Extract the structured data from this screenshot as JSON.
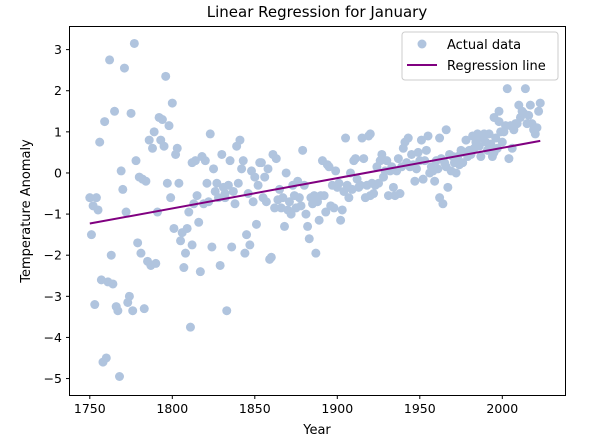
{
  "chart_data": {
    "type": "scatter",
    "title": "Linear Regression for January",
    "xlabel": "Year",
    "ylabel": "Temperature Anomaly",
    "xlim": [
      1738,
      2038
    ],
    "ylim": [
      -5.4,
      3.55
    ],
    "xticks": [
      1750,
      1800,
      1850,
      1900,
      1950,
      2000
    ],
    "yticks": [
      -5,
      -4,
      -3,
      -2,
      -1,
      0,
      1,
      2,
      3
    ],
    "tick_labels_y": [
      "−5",
      "−4",
      "−3",
      "−2",
      "−1",
      "0",
      "1",
      "2",
      "3"
    ],
    "grid": false,
    "legend_placement": "top-right",
    "colors": {
      "scatter": "#b0c4de",
      "line": "#800080"
    },
    "series": [
      {
        "name": "Actual data",
        "type": "scatter",
        "points": [
          [
            1750,
            -0.6
          ],
          [
            1751,
            -1.5
          ],
          [
            1752,
            -0.8
          ],
          [
            1753,
            -3.2
          ],
          [
            1754,
            -0.6
          ],
          [
            1755,
            -0.9
          ],
          [
            1756,
            0.75
          ],
          [
            1757,
            -2.6
          ],
          [
            1758,
            -4.6
          ],
          [
            1759,
            1.25
          ],
          [
            1760,
            -4.5
          ],
          [
            1761,
            -2.65
          ],
          [
            1762,
            2.75
          ],
          [
            1763,
            -2.0
          ],
          [
            1764,
            -2.7
          ],
          [
            1765,
            1.5
          ],
          [
            1766,
            -3.25
          ],
          [
            1767,
            -3.35
          ],
          [
            1768,
            -4.95
          ],
          [
            1769,
            0.05
          ],
          [
            1770,
            -0.4
          ],
          [
            1771,
            2.55
          ],
          [
            1772,
            -0.95
          ],
          [
            1773,
            -3.15
          ],
          [
            1774,
            -3.0
          ],
          [
            1775,
            1.45
          ],
          [
            1776,
            -3.35
          ],
          [
            1777,
            3.15
          ],
          [
            1778,
            0.3
          ],
          [
            1779,
            -1.7
          ],
          [
            1780,
            -0.1
          ],
          [
            1781,
            -1.95
          ],
          [
            1782,
            -0.15
          ],
          [
            1783,
            -3.3
          ],
          [
            1784,
            -0.2
          ],
          [
            1785,
            -2.15
          ],
          [
            1786,
            0.8
          ],
          [
            1787,
            -2.25
          ],
          [
            1788,
            0.6
          ],
          [
            1789,
            1.0
          ],
          [
            1790,
            -2.2
          ],
          [
            1791,
            -0.95
          ],
          [
            1792,
            1.35
          ],
          [
            1793,
            0.8
          ],
          [
            1794,
            1.3
          ],
          [
            1795,
            0.65
          ],
          [
            1796,
            2.35
          ],
          [
            1797,
            -0.25
          ],
          [
            1798,
            1.15
          ],
          [
            1799,
            -0.6
          ],
          [
            1800,
            1.7
          ],
          [
            1801,
            -1.35
          ],
          [
            1802,
            0.45
          ],
          [
            1803,
            0.6
          ],
          [
            1804,
            -0.25
          ],
          [
            1805,
            -1.65
          ],
          [
            1806,
            -1.45
          ],
          [
            1807,
            -2.3
          ],
          [
            1808,
            -1.95
          ],
          [
            1809,
            -1.35
          ],
          [
            1810,
            -0.95
          ],
          [
            1811,
            -3.75
          ],
          [
            1812,
            -1.75
          ],
          [
            1813,
            -0.75
          ],
          [
            1814,
            0.3
          ],
          [
            1815,
            -0.55
          ],
          [
            1816,
            -1.2
          ],
          [
            1817,
            -2.4
          ],
          [
            1818,
            0.4
          ],
          [
            1819,
            -0.75
          ],
          [
            1820,
            0.3
          ],
          [
            1821,
            -0.25
          ],
          [
            1822,
            -0.7
          ],
          [
            1823,
            0.95
          ],
          [
            1824,
            -1.8
          ],
          [
            1825,
            0.1
          ],
          [
            1826,
            -0.45
          ],
          [
            1827,
            -0.25
          ],
          [
            1828,
            -0.6
          ],
          [
            1829,
            -2.25
          ],
          [
            1830,
            0.45
          ],
          [
            1831,
            -0.35
          ],
          [
            1832,
            -0.5
          ],
          [
            1833,
            -3.35
          ],
          [
            1834,
            -0.3
          ],
          [
            1835,
            0.3
          ],
          [
            1836,
            -1.8
          ],
          [
            1837,
            -0.45
          ],
          [
            1838,
            -0.75
          ],
          [
            1839,
            0.65
          ],
          [
            1840,
            -0.25
          ],
          [
            1841,
            0.8
          ],
          [
            1842,
            0.1
          ],
          [
            1843,
            0.3
          ],
          [
            1844,
            -1.95
          ],
          [
            1845,
            -1.5
          ],
          [
            1846,
            -0.5
          ],
          [
            1847,
            -1.75
          ],
          [
            1848,
            0.05
          ],
          [
            1849,
            -0.7
          ],
          [
            1850,
            -0.1
          ],
          [
            1851,
            -1.25
          ],
          [
            1852,
            -0.3
          ],
          [
            1853,
            0.25
          ],
          [
            1854,
            0.25
          ],
          [
            1855,
            -0.6
          ],
          [
            1856,
            -0.1
          ],
          [
            1857,
            -0.7
          ],
          [
            1858,
            0.1
          ],
          [
            1859,
            -2.1
          ],
          [
            1860,
            -2.05
          ],
          [
            1861,
            0.45
          ],
          [
            1862,
            -0.85
          ],
          [
            1863,
            0.35
          ],
          [
            1864,
            -0.65
          ],
          [
            1865,
            -0.4
          ],
          [
            1866,
            -0.85
          ],
          [
            1867,
            -0.6
          ],
          [
            1868,
            -1.3
          ],
          [
            1869,
            0.0
          ],
          [
            1870,
            -0.9
          ],
          [
            1871,
            -0.7
          ],
          [
            1872,
            -1.0
          ],
          [
            1873,
            -0.3
          ],
          [
            1874,
            -0.55
          ],
          [
            1875,
            -0.85
          ],
          [
            1876,
            -0.2
          ],
          [
            1877,
            -0.6
          ],
          [
            1878,
            -0.8
          ],
          [
            1879,
            0.55
          ],
          [
            1880,
            -0.3
          ],
          [
            1881,
            -1.0
          ],
          [
            1882,
            -1.3
          ],
          [
            1883,
            -1.6
          ],
          [
            1884,
            -0.6
          ],
          [
            1885,
            -0.75
          ],
          [
            1886,
            -0.55
          ],
          [
            1887,
            -1.95
          ],
          [
            1888,
            -0.7
          ],
          [
            1889,
            -1.15
          ],
          [
            1890,
            -0.55
          ],
          [
            1891,
            0.3
          ],
          [
            1892,
            -0.55
          ],
          [
            1893,
            -0.95
          ],
          [
            1894,
            0.2
          ],
          [
            1895,
            0.15
          ],
          [
            1896,
            -0.8
          ],
          [
            1897,
            -0.3
          ],
          [
            1898,
            -0.85
          ],
          [
            1899,
            0.05
          ],
          [
            1900,
            -0.35
          ],
          [
            1901,
            -0.25
          ],
          [
            1902,
            -1.15
          ],
          [
            1903,
            -0.9
          ],
          [
            1904,
            -0.45
          ],
          [
            1905,
            0.85
          ],
          [
            1906,
            -0.3
          ],
          [
            1907,
            -0.6
          ],
          [
            1908,
            0.0
          ],
          [
            1909,
            -0.4
          ],
          [
            1910,
            0.3
          ],
          [
            1911,
            0.35
          ],
          [
            1912,
            -0.15
          ],
          [
            1913,
            -0.35
          ],
          [
            1914,
            -0.3
          ],
          [
            1915,
            0.85
          ],
          [
            1916,
            0.35
          ],
          [
            1917,
            -0.6
          ],
          [
            1918,
            -0.3
          ],
          [
            1919,
            0.9
          ],
          [
            1920,
            -0.55
          ],
          [
            1921,
            -0.25
          ],
          [
            1922,
            -0.5
          ],
          [
            1923,
            -0.3
          ],
          [
            1924,
            0.15
          ],
          [
            1925,
            -0.25
          ],
          [
            1926,
            0.3
          ],
          [
            1927,
            0.45
          ],
          [
            1928,
            -0.1
          ],
          [
            1929,
            0.05
          ],
          [
            1930,
            0.3
          ],
          [
            1931,
            -0.55
          ],
          [
            1932,
            0.05
          ],
          [
            1933,
            0.15
          ],
          [
            1934,
            -0.35
          ],
          [
            1935,
            -0.55
          ],
          [
            1936,
            0.05
          ],
          [
            1937,
            0.35
          ],
          [
            1938,
            -0.5
          ],
          [
            1939,
            0.15
          ],
          [
            1940,
            0.6
          ],
          [
            1941,
            0.75
          ],
          [
            1942,
            0.25
          ],
          [
            1943,
            0.85
          ],
          [
            1944,
            0.15
          ],
          [
            1945,
            0.45
          ],
          [
            1946,
            0.2
          ],
          [
            1947,
            -0.2
          ],
          [
            1948,
            0.1
          ],
          [
            1949,
            0.5
          ],
          [
            1950,
            0.3
          ],
          [
            1951,
            0.8
          ],
          [
            1952,
            -0.15
          ],
          [
            1953,
            0.3
          ],
          [
            1954,
            0.55
          ],
          [
            1955,
            0.9
          ],
          [
            1956,
            0.0
          ],
          [
            1957,
            0.15
          ],
          [
            1958,
            0.05
          ],
          [
            1959,
            -0.2
          ],
          [
            1960,
            0.3
          ],
          [
            1961,
            0.1
          ],
          [
            1962,
            -0.6
          ],
          [
            1963,
            0.35
          ],
          [
            1964,
            -0.75
          ],
          [
            1965,
            0.25
          ],
          [
            1966,
            0.15
          ],
          [
            1967,
            -0.35
          ],
          [
            1968,
            0.45
          ],
          [
            1969,
            0.05
          ],
          [
            1970,
            0.4
          ],
          [
            1971,
            0.25
          ],
          [
            1972,
            0.0
          ],
          [
            1973,
            0.4
          ],
          [
            1974,
            0.2
          ],
          [
            1975,
            0.55
          ],
          [
            1976,
            0.25
          ],
          [
            1977,
            0.5
          ],
          [
            1978,
            0.8
          ],
          [
            1979,
            0.4
          ],
          [
            1980,
            0.55
          ],
          [
            1981,
            0.45
          ],
          [
            1982,
            0.9
          ],
          [
            1983,
            0.6
          ],
          [
            1984,
            0.75
          ],
          [
            1985,
            0.95
          ],
          [
            1986,
            0.65
          ],
          [
            1987,
            0.4
          ],
          [
            1988,
            0.85
          ],
          [
            1989,
            0.95
          ],
          [
            1990,
            0.75
          ],
          [
            1991,
            0.55
          ],
          [
            1992,
            0.95
          ],
          [
            1993,
            0.7
          ],
          [
            1994,
            0.4
          ],
          [
            1995,
            0.5
          ],
          [
            1996,
            0.85
          ],
          [
            1997,
            0.6
          ],
          [
            1998,
            1.25
          ],
          [
            1999,
            1.0
          ],
          [
            2000,
            0.75
          ],
          [
            2001,
            1.0
          ],
          [
            2002,
            1.15
          ],
          [
            2003,
            2.05
          ],
          [
            2004,
            0.35
          ],
          [
            2005,
            1.15
          ],
          [
            2006,
            0.6
          ],
          [
            2007,
            1.05
          ],
          [
            2008,
            1.2
          ],
          [
            2009,
            1.2
          ],
          [
            2010,
            1.65
          ],
          [
            2011,
            1.35
          ],
          [
            2012,
            1.5
          ],
          [
            2013,
            1.45
          ],
          [
            2014,
            2.05
          ],
          [
            2015,
            1.2
          ],
          [
            2016,
            1.4
          ],
          [
            2017,
            1.65
          ],
          [
            2018,
            1.2
          ],
          [
            2019,
            1.05
          ],
          [
            2020,
            0.95
          ],
          [
            2021,
            1.1
          ],
          [
            2022,
            1.5
          ],
          [
            2023,
            1.7
          ],
          [
            1832,
            -0.6
          ],
          [
            1812,
            0.25
          ],
          [
            1995,
            1.35
          ],
          [
            1962,
            0.85
          ],
          [
            1966,
            1.05
          ],
          [
            1920,
            0.95
          ],
          [
            1998,
            1.5
          ]
        ]
      },
      {
        "name": "Regression line",
        "type": "line",
        "points": [
          [
            1750,
            -1.23
          ],
          [
            2023,
            0.78
          ]
        ]
      }
    ]
  }
}
